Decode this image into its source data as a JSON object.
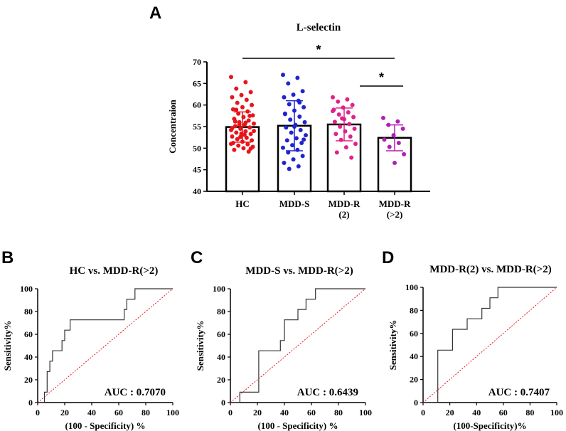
{
  "chart_data": [
    {
      "panel": "A",
      "type": "bar",
      "title": "L-selectin",
      "ylabel": "Concentraion",
      "xlabel": "",
      "ylim": [
        40,
        70
      ],
      "yticks": [
        40,
        45,
        50,
        55,
        60,
        65,
        70
      ],
      "categories": [
        {
          "lines": [
            "HC"
          ],
          "color": "#e8141b"
        },
        {
          "lines": [
            "MDD-S"
          ],
          "color": "#1f24cf"
        },
        {
          "lines": [
            "MDD-R",
            "(2)"
          ],
          "color": "#e0218a"
        },
        {
          "lines": [
            "MDD-R",
            "(>2)"
          ],
          "color": "#b01fb5"
        }
      ],
      "means": [
        54.9,
        55.2,
        55.5,
        52.4
      ],
      "sd": [
        3.5,
        5.8,
        3.8,
        3.0
      ],
      "points": [
        [
          66.5,
          65.3,
          63.8,
          63.0,
          62.3,
          61.8,
          61.2,
          60.5,
          60.0,
          59.5,
          59.0,
          58.5,
          58.0,
          57.6,
          57.2,
          56.8,
          56.4,
          56.0,
          55.7,
          55.4,
          55.1,
          54.8,
          54.5,
          54.2,
          53.9,
          53.6,
          53.3,
          53.0,
          52.7,
          52.4,
          52.1,
          51.8,
          51.5,
          51.2,
          50.9,
          50.6,
          50.3,
          50.0,
          49.6,
          49.2,
          55.5,
          54.0,
          53.1,
          56.2,
          57.5,
          52.6,
          51.0,
          55.9,
          58.9,
          49.9,
          53.4,
          54.6
        ],
        [
          67.0,
          66.3,
          65.0,
          63.2,
          62.4,
          61.8,
          61.0,
          60.2,
          59.5,
          58.7,
          58.0,
          57.3,
          56.6,
          56.0,
          55.4,
          54.8,
          54.2,
          53.6,
          53.0,
          52.3,
          51.8,
          51.2,
          50.7,
          50.1,
          49.6,
          49.0,
          48.2,
          47.4,
          46.6,
          45.8,
          45.2,
          52.0,
          55.0,
          57.9,
          60.6
        ],
        [
          61.8,
          61.3,
          60.8,
          60.0,
          59.4,
          58.9,
          58.3,
          57.8,
          57.2,
          56.7,
          56.1,
          55.6,
          55.0,
          54.5,
          53.9,
          53.3,
          52.7,
          51.9,
          51.0,
          50.2,
          49.0,
          47.8,
          56.9,
          58.6
        ],
        [
          57.0,
          56.2,
          55.4,
          54.5,
          53.0,
          52.0,
          51.2,
          50.3,
          48.6,
          46.6
        ]
      ],
      "significance": [
        {
          "from": 0,
          "to": 3,
          "label": "*"
        },
        {
          "from": 2,
          "to": 3,
          "label": "*"
        }
      ]
    },
    {
      "panel": "B",
      "type": "line",
      "title": "HC vs. MDD-R(>2)",
      "xlabel": "(100 - Specificity) %",
      "ylabel": "Sensitivity%",
      "xlim": [
        0,
        100
      ],
      "ylim": [
        0,
        100
      ],
      "xticks": [
        0,
        20,
        40,
        60,
        80,
        100
      ],
      "yticks": [
        0,
        20,
        40,
        60,
        80,
        100
      ],
      "auc_label": "AUC : 0.7070",
      "series": [
        {
          "name": "ROC",
          "x": [
            0,
            5,
            5,
            7,
            7,
            9,
            9,
            11,
            11,
            18,
            18,
            20,
            20,
            24,
            24,
            38,
            38,
            64,
            64,
            66,
            66,
            72,
            72,
            76,
            76,
            100
          ],
          "y": [
            0,
            0,
            9.1,
            9.1,
            27.3,
            27.3,
            36.4,
            36.4,
            45.5,
            45.5,
            54.5,
            54.5,
            63.6,
            63.6,
            72.7,
            72.7,
            72.7,
            72.7,
            81.8,
            81.8,
            90.9,
            90.9,
            100,
            100,
            100,
            100
          ]
        },
        {
          "name": "reference",
          "x": [
            0,
            100
          ],
          "y": [
            0,
            100
          ]
        }
      ]
    },
    {
      "panel": "C",
      "type": "line",
      "title": "MDD-S vs. MDD-R(>2)",
      "xlabel": "(100 - Specificity) %",
      "ylabel": "Sensitivity%",
      "xlim": [
        0,
        100
      ],
      "ylim": [
        0,
        100
      ],
      "xticks": [
        0,
        20,
        40,
        60,
        80,
        100
      ],
      "yticks": [
        0,
        20,
        40,
        60,
        80,
        100
      ],
      "auc_label": "AUC : 0.6439",
      "series": [
        {
          "name": "ROC",
          "x": [
            0,
            7,
            7,
            21,
            21,
            37,
            37,
            40,
            40,
            47,
            47,
            50,
            50,
            56,
            56,
            63,
            63,
            66,
            66,
            100
          ],
          "y": [
            0,
            0,
            9.1,
            9.1,
            45.5,
            45.5,
            54.5,
            54.5,
            72.7,
            72.7,
            72.7,
            72.7,
            81.8,
            81.8,
            90.9,
            90.9,
            100,
            100,
            100,
            100
          ]
        },
        {
          "name": "reference",
          "x": [
            0,
            100
          ],
          "y": [
            0,
            100
          ]
        }
      ]
    },
    {
      "panel": "D",
      "type": "line",
      "title": "MDD-R(2) vs. MDD-R(>2)",
      "xlabel": "(100-Specificity)%",
      "ylabel": "Sensitivity%",
      "xlim": [
        0,
        100
      ],
      "ylim": [
        0,
        100
      ],
      "xticks": [
        0,
        20,
        40,
        60,
        80,
        100
      ],
      "yticks": [
        0,
        20,
        40,
        60,
        80,
        100
      ],
      "auc_label": "AUC : 0.7407",
      "series": [
        {
          "name": "ROC",
          "x": [
            0,
            11,
            11,
            22,
            22,
            33,
            33,
            44,
            44,
            50,
            50,
            56,
            56,
            67,
            67,
            100
          ],
          "y": [
            0,
            0,
            45.5,
            45.5,
            63.6,
            63.6,
            72.7,
            72.7,
            81.8,
            81.8,
            90.9,
            90.9,
            100,
            100,
            100,
            100
          ]
        },
        {
          "name": "reference",
          "x": [
            0,
            100
          ],
          "y": [
            0,
            100
          ]
        }
      ]
    }
  ]
}
